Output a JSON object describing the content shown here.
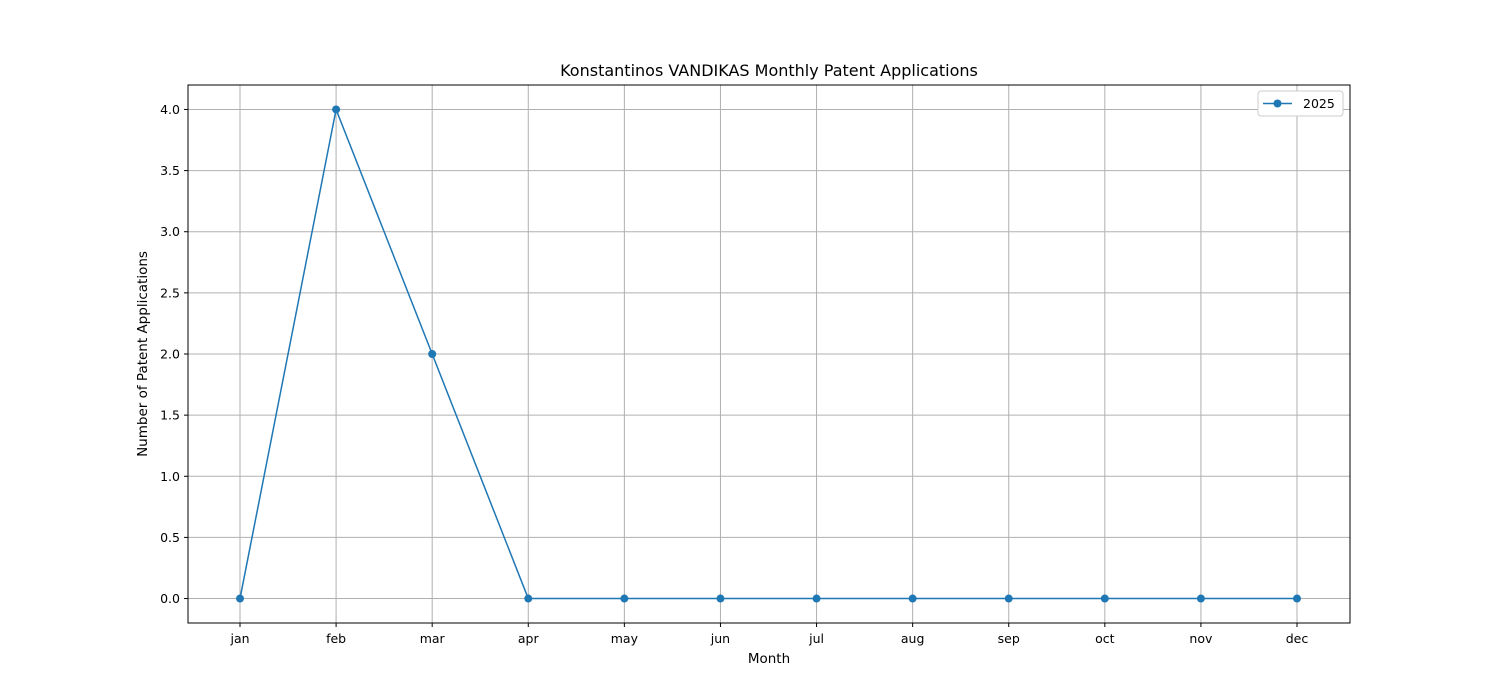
{
  "chart_data": {
    "type": "line",
    "title": "Konstantinos VANDIKAS Monthly Patent Applications",
    "xlabel": "Month",
    "ylabel": "Number of Patent Applications",
    "categories": [
      "jan",
      "feb",
      "mar",
      "apr",
      "may",
      "jun",
      "jul",
      "aug",
      "sep",
      "oct",
      "nov",
      "dec"
    ],
    "series": [
      {
        "name": "2025",
        "color": "#1f77b4",
        "values": [
          0,
          4,
          2,
          0,
          0,
          0,
          0,
          0,
          0,
          0,
          0,
          0
        ]
      }
    ],
    "ylim": [
      -0.2,
      4.2
    ],
    "yticks": [
      "0.0",
      "0.5",
      "1.0",
      "1.5",
      "2.0",
      "2.5",
      "3.0",
      "3.5",
      "4.0"
    ],
    "grid": true,
    "legend_position": "top-right",
    "marker": "circle"
  }
}
